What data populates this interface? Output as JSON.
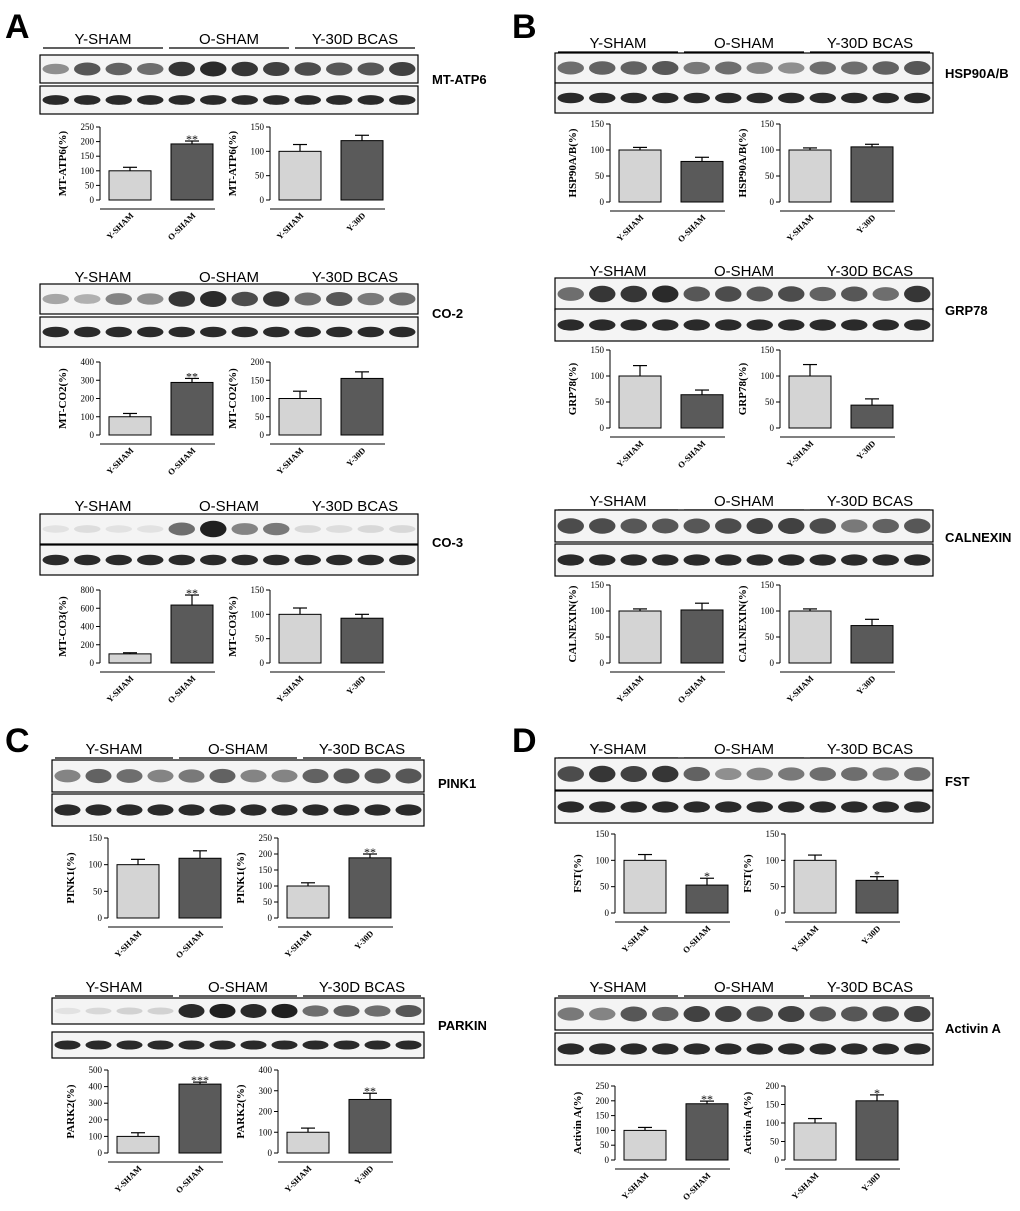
{
  "panels": [
    {
      "label": "A",
      "blots": [
        {
          "protein": "MT-ATP6",
          "groups": [
            "Y-SHAM",
            "O-SHAM",
            "Y-30D BCAS"
          ],
          "band_intensity": [
            0.45,
            0.7,
            0.65,
            0.6,
            0.85,
            0.9,
            0.85,
            0.8,
            0.75,
            0.7,
            0.7,
            0.8
          ],
          "charts": [
            {
              "type": "bar",
              "categories": [
                "Y-SHAM",
                "O-SHAM"
              ],
              "values": [
                100,
                192
              ],
              "errors": [
                12,
                10
              ],
              "ylabel": "MT-ATP6(%)",
              "ylim": [
                0,
                250
              ],
              "ticks": [
                0,
                50,
                100,
                150,
                200,
                250
              ],
              "stars": [
                "",
                "**"
              ]
            },
            {
              "type": "bar",
              "categories": [
                "Y-SHAM",
                "Y-30D"
              ],
              "values": [
                100,
                122
              ],
              "errors": [
                14,
                11
              ],
              "ylabel": "MT-ATP6(%)",
              "ylim": [
                0,
                150
              ],
              "ticks": [
                0,
                50,
                100,
                150
              ],
              "stars": [
                "",
                ""
              ]
            }
          ]
        },
        {
          "protein": "CO-2",
          "groups": [
            "Y-SHAM",
            "O-SHAM",
            "Y-30D BCAS"
          ],
          "band_intensity": [
            0.35,
            0.3,
            0.5,
            0.45,
            0.85,
            0.9,
            0.75,
            0.85,
            0.6,
            0.7,
            0.55,
            0.6
          ],
          "charts": [
            {
              "type": "bar",
              "categories": [
                "Y-SHAM",
                "O-SHAM"
              ],
              "values": [
                100,
                288
              ],
              "errors": [
                18,
                22
              ],
              "ylabel": "MT-CO2(%)",
              "ylim": [
                0,
                400
              ],
              "ticks": [
                0,
                100,
                200,
                300,
                400
              ],
              "stars": [
                "",
                "**"
              ]
            },
            {
              "type": "bar",
              "categories": [
                "Y-SHAM",
                "Y-30D"
              ],
              "values": [
                100,
                155
              ],
              "errors": [
                20,
                18
              ],
              "ylabel": "MT-CO2(%)",
              "ylim": [
                0,
                200
              ],
              "ticks": [
                0,
                50,
                100,
                150,
                200
              ],
              "stars": [
                "",
                ""
              ]
            }
          ]
        },
        {
          "protein": "CO-3",
          "groups": [
            "Y-SHAM",
            "O-SHAM",
            "Y-30D BCAS"
          ],
          "band_intensity": [
            0.08,
            0.1,
            0.08,
            0.08,
            0.6,
            0.95,
            0.5,
            0.55,
            0.12,
            0.1,
            0.12,
            0.12
          ],
          "charts": [
            {
              "type": "bar",
              "categories": [
                "Y-SHAM",
                "O-SHAM"
              ],
              "values": [
                100,
                635
              ],
              "errors": [
                12,
                110
              ],
              "ylabel": "MT-CO3(%)",
              "ylim": [
                0,
                800
              ],
              "ticks": [
                0,
                200,
                400,
                600,
                800
              ],
              "stars": [
                "",
                "**"
              ]
            },
            {
              "type": "bar",
              "categories": [
                "Y-SHAM",
                "Y-30D"
              ],
              "values": [
                100,
                92
              ],
              "errors": [
                13,
                8
              ],
              "ylabel": "MT-CO3(%)",
              "ylim": [
                0,
                150
              ],
              "ticks": [
                0,
                50,
                100,
                150
              ],
              "stars": [
                "",
                ""
              ]
            }
          ]
        }
      ]
    },
    {
      "label": "B",
      "blots": [
        {
          "protein": "HSP90A/B",
          "groups": [
            "Y-SHAM",
            "O-SHAM",
            "Y-30D BCAS"
          ],
          "band_intensity": [
            0.6,
            0.65,
            0.65,
            0.7,
            0.55,
            0.6,
            0.5,
            0.45,
            0.6,
            0.6,
            0.65,
            0.7
          ],
          "charts": [
            {
              "type": "bar",
              "categories": [
                "Y-SHAM",
                "O-SHAM"
              ],
              "values": [
                100,
                78
              ],
              "errors": [
                5,
                8
              ],
              "ylabel": "HSP90A/B(%)",
              "ylim": [
                0,
                150
              ],
              "ticks": [
                0,
                50,
                100,
                150
              ],
              "stars": [
                "",
                ""
              ]
            },
            {
              "type": "bar",
              "categories": [
                "Y-SHAM",
                "Y-30D"
              ],
              "values": [
                100,
                106
              ],
              "errors": [
                4,
                5
              ],
              "ylabel": "HSP90A/B(%)",
              "ylim": [
                0,
                150
              ],
              "ticks": [
                0,
                50,
                100,
                150
              ],
              "stars": [
                "",
                ""
              ]
            }
          ]
        },
        {
          "protein": "GRP78",
          "groups": [
            "Y-SHAM",
            "O-SHAM",
            "Y-30D BCAS"
          ],
          "band_intensity": [
            0.6,
            0.85,
            0.85,
            0.9,
            0.7,
            0.75,
            0.7,
            0.75,
            0.65,
            0.7,
            0.6,
            0.85
          ],
          "charts": [
            {
              "type": "bar",
              "categories": [
                "Y-SHAM",
                "O-SHAM"
              ],
              "values": [
                100,
                64
              ],
              "errors": [
                20,
                9
              ],
              "ylabel": "GRP78(%)",
              "ylim": [
                0,
                150
              ],
              "ticks": [
                0,
                50,
                100,
                150
              ],
              "stars": [
                "",
                ""
              ]
            },
            {
              "type": "bar",
              "categories": [
                "Y-SHAM",
                "Y-30D"
              ],
              "values": [
                100,
                44
              ],
              "errors": [
                22,
                12
              ],
              "ylabel": "GRP78(%)",
              "ylim": [
                0,
                150
              ],
              "ticks": [
                0,
                50,
                100,
                150
              ],
              "stars": [
                "",
                ""
              ]
            }
          ]
        },
        {
          "protein": "CALNEXIN",
          "groups": [
            "Y-SHAM",
            "O-SHAM",
            "Y-30D BCAS"
          ],
          "band_intensity": [
            0.75,
            0.75,
            0.7,
            0.7,
            0.7,
            0.75,
            0.8,
            0.8,
            0.75,
            0.55,
            0.65,
            0.7
          ],
          "charts": [
            {
              "type": "bar",
              "categories": [
                "Y-SHAM",
                "O-SHAM"
              ],
              "values": [
                100,
                102
              ],
              "errors": [
                4,
                13
              ],
              "ylabel": "CALNEXIN(%)",
              "ylim": [
                0,
                150
              ],
              "ticks": [
                0,
                50,
                100,
                150
              ],
              "stars": [
                "",
                ""
              ]
            },
            {
              "type": "bar",
              "categories": [
                "Y-SHAM",
                "Y-30D"
              ],
              "values": [
                100,
                72
              ],
              "errors": [
                4,
                12
              ],
              "ylabel": "CALNEXIN(%)",
              "ylim": [
                0,
                150
              ],
              "ticks": [
                0,
                50,
                100,
                150
              ],
              "stars": [
                "",
                ""
              ]
            }
          ]
        }
      ]
    },
    {
      "label": "C",
      "blots": [
        {
          "protein": "PINK1",
          "groups": [
            "Y-SHAM",
            "O-SHAM",
            "Y-30D BCAS"
          ],
          "band_intensity": [
            0.5,
            0.65,
            0.6,
            0.5,
            0.55,
            0.65,
            0.5,
            0.5,
            0.65,
            0.7,
            0.7,
            0.7
          ],
          "charts": [
            {
              "type": "bar",
              "categories": [
                "Y-SHAM",
                "O-SHAM"
              ],
              "values": [
                100,
                112
              ],
              "errors": [
                10,
                14
              ],
              "ylabel": "PINK1(%)",
              "ylim": [
                0,
                150
              ],
              "ticks": [
                0,
                50,
                100,
                150
              ],
              "stars": [
                "",
                ""
              ]
            },
            {
              "type": "bar",
              "categories": [
                "Y-SHAM",
                "Y-30D"
              ],
              "values": [
                100,
                188
              ],
              "errors": [
                10,
                12
              ],
              "ylabel": "PINK1(%)",
              "ylim": [
                0,
                250
              ],
              "ticks": [
                0,
                50,
                100,
                150,
                200,
                250
              ],
              "stars": [
                "",
                "**"
              ]
            }
          ]
        },
        {
          "protein": "PARKIN",
          "groups": [
            "Y-SHAM",
            "O-SHAM",
            "Y-30D BCAS"
          ],
          "band_intensity": [
            0.08,
            0.12,
            0.15,
            0.15,
            0.9,
            0.95,
            0.9,
            0.95,
            0.6,
            0.65,
            0.6,
            0.7
          ],
          "charts": [
            {
              "type": "bar",
              "categories": [
                "Y-SHAM",
                "O-SHAM"
              ],
              "values": [
                100,
                415
              ],
              "errors": [
                22,
                12
              ],
              "ylabel": "PARK2(%)",
              "ylim": [
                0,
                500
              ],
              "ticks": [
                0,
                100,
                200,
                300,
                400,
                500
              ],
              "stars": [
                "",
                "***"
              ]
            },
            {
              "type": "bar",
              "categories": [
                "Y-SHAM",
                "Y-30D"
              ],
              "values": [
                100,
                258
              ],
              "errors": [
                20,
                30
              ],
              "ylabel": "PARK2(%)",
              "ylim": [
                0,
                400
              ],
              "ticks": [
                0,
                100,
                200,
                300,
                400
              ],
              "stars": [
                "",
                "**"
              ]
            }
          ]
        }
      ]
    },
    {
      "label": "D",
      "blots": [
        {
          "protein": "FST",
          "groups": [
            "Y-SHAM",
            "O-SHAM",
            "Y-30D BCAS"
          ],
          "band_intensity": [
            0.75,
            0.85,
            0.8,
            0.85,
            0.65,
            0.45,
            0.5,
            0.55,
            0.6,
            0.6,
            0.55,
            0.6
          ],
          "charts": [
            {
              "type": "bar",
              "categories": [
                "Y-SHAM",
                "O-SHAM"
              ],
              "values": [
                100,
                53
              ],
              "errors": [
                11,
                13
              ],
              "ylabel": "FST(%)",
              "ylim": [
                0,
                150
              ],
              "ticks": [
                0,
                50,
                100,
                150
              ],
              "stars": [
                "",
                "*"
              ]
            },
            {
              "type": "bar",
              "categories": [
                "Y-SHAM",
                "Y-30D"
              ],
              "values": [
                100,
                62
              ],
              "errors": [
                10,
                7
              ],
              "ylabel": "FST(%)",
              "ylim": [
                0,
                150
              ],
              "ticks": [
                0,
                50,
                100,
                150
              ],
              "stars": [
                "",
                "*"
              ]
            }
          ]
        },
        {
          "protein": "Activin A",
          "groups": [
            "Y-SHAM",
            "O-SHAM",
            "Y-30D BCAS"
          ],
          "band_intensity": [
            0.55,
            0.5,
            0.7,
            0.65,
            0.8,
            0.8,
            0.75,
            0.8,
            0.7,
            0.7,
            0.75,
            0.8
          ],
          "charts": [
            {
              "type": "bar",
              "categories": [
                "Y-SHAM",
                "O-SHAM"
              ],
              "values": [
                100,
                190
              ],
              "errors": [
                10,
                9
              ],
              "ylabel": "Activin A(%)",
              "ylim": [
                0,
                250
              ],
              "ticks": [
                0,
                50,
                100,
                150,
                200,
                250
              ],
              "stars": [
                "",
                "**"
              ]
            },
            {
              "type": "bar",
              "categories": [
                "Y-SHAM",
                "Y-30D"
              ],
              "values": [
                100,
                160
              ],
              "errors": [
                12,
                16
              ],
              "ylabel": "Activin A(%)",
              "ylim": [
                0,
                200
              ],
              "ticks": [
                0,
                50,
                100,
                150,
                200
              ],
              "stars": [
                "",
                "*"
              ]
            }
          ]
        }
      ]
    }
  ],
  "colors": {
    "bar_light": "#d4d4d4",
    "bar_dark": "#5a5a5a",
    "band": "#141414"
  }
}
